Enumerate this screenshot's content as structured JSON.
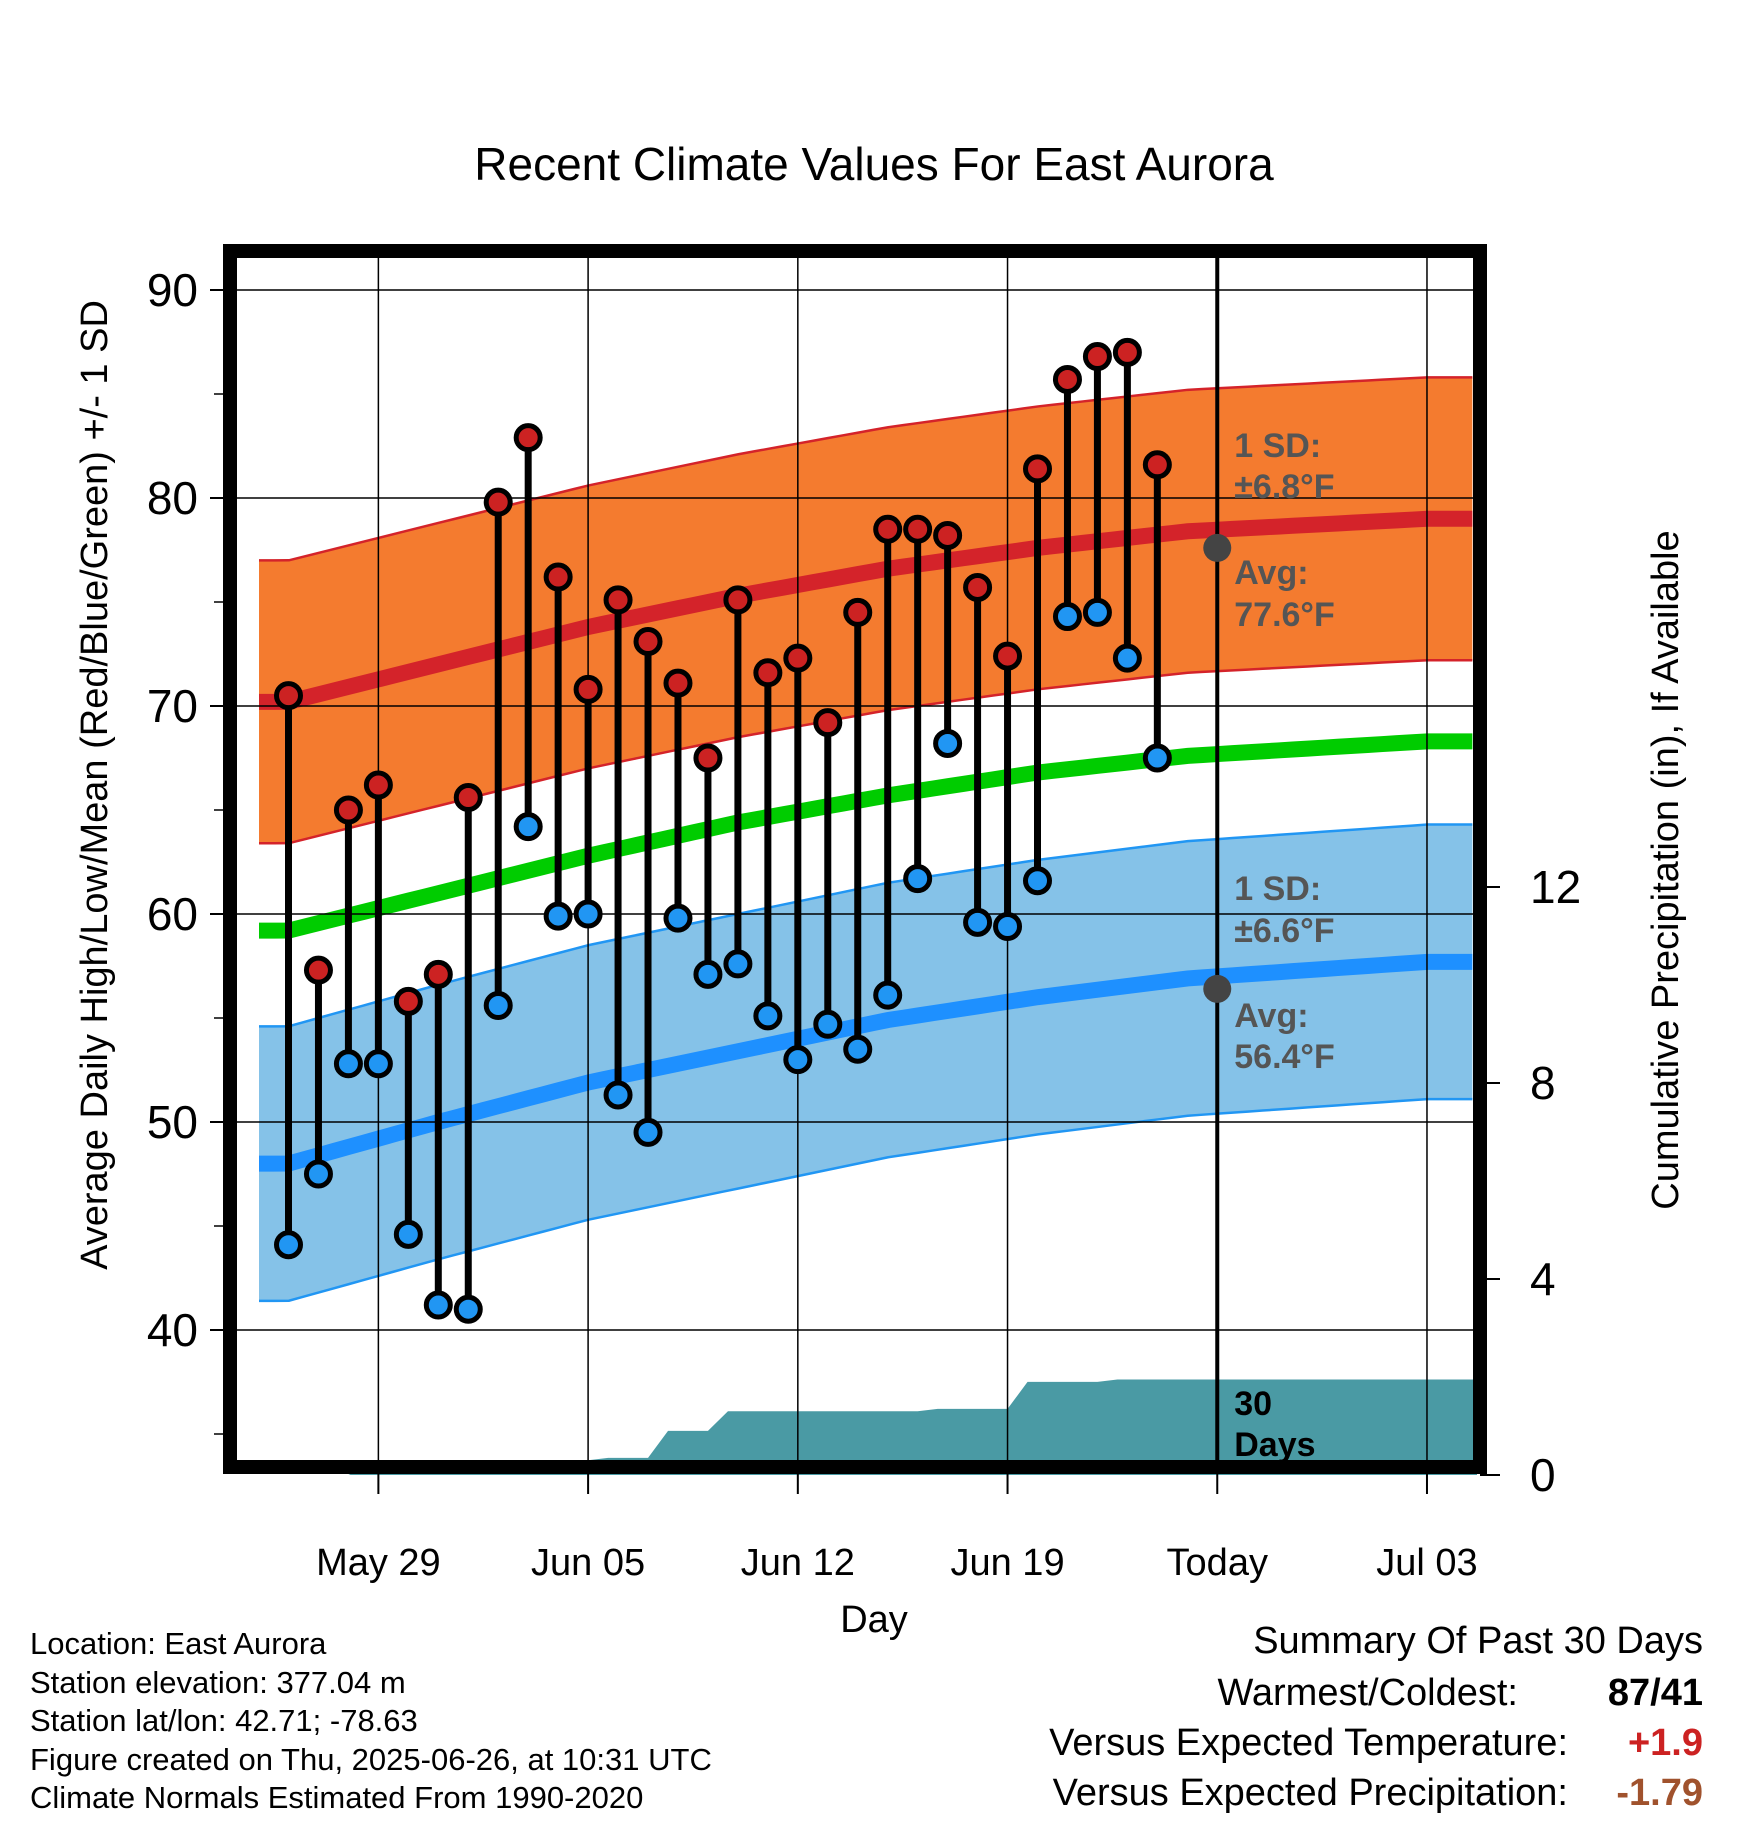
{
  "chart_data": {
    "type": "line",
    "title": "Recent Climate Values For East Aurora",
    "xlabel": "Day",
    "ylabel": "Average Daily High/Low/Mean (Red/Blue/Green) +/- 1 SD",
    "y2label": "Cumulative Precipitation (in), If Available",
    "ylim": [
      33,
      92
    ],
    "y2lim": [
      0,
      28.3
    ],
    "yticks": [
      "40",
      "50",
      "60",
      "70",
      "80",
      "90"
    ],
    "y2ticks": [
      "0",
      "4",
      "8",
      "12"
    ],
    "xticks": [
      "May 29",
      "Jun 05",
      "Jun 12",
      "Jun 19",
      "Today",
      "Jul 03"
    ],
    "today_marker": "Today",
    "days": [
      "May 26",
      "May 27",
      "May 28",
      "May 29",
      "May 30",
      "May 31",
      "Jun 01",
      "Jun 02",
      "Jun 03",
      "Jun 04",
      "Jun 05",
      "Jun 06",
      "Jun 07",
      "Jun 08",
      "Jun 09",
      "Jun 10",
      "Jun 11",
      "Jun 12",
      "Jun 13",
      "Jun 14",
      "Jun 15",
      "Jun 16",
      "Jun 17",
      "Jun 18",
      "Jun 19",
      "Jun 20",
      "Jun 21",
      "Jun 22",
      "Jun 23",
      "Jun 24",
      "Jun 25"
    ],
    "series": [
      {
        "name": "High",
        "color": "#cc2222",
        "values": [
          70.5,
          57.3,
          65.0,
          66.2,
          55.8,
          57.1,
          65.6,
          79.8,
          82.9,
          76.2,
          70.8,
          75.1,
          73.1,
          71.1,
          67.5,
          75.1,
          71.6,
          72.3,
          69.2,
          74.5,
          78.5,
          78.5,
          78.2,
          75.7,
          72.4,
          81.4,
          85.7,
          86.8,
          87.0,
          81.6,
          null
        ]
      },
      {
        "name": "Low",
        "color": "#2196f3",
        "values": [
          44.1,
          47.5,
          52.8,
          52.8,
          44.6,
          41.2,
          41.0,
          55.6,
          64.2,
          59.9,
          60.0,
          51.3,
          49.5,
          59.8,
          57.1,
          57.6,
          55.1,
          53.0,
          54.7,
          53.5,
          56.1,
          61.7,
          68.2,
          59.6,
          59.4,
          61.6,
          74.3,
          74.5,
          72.3,
          67.5,
          null
        ]
      }
    ],
    "normals": {
      "high_mean": [
        70.2,
        72.0,
        73.8,
        75.3,
        76.6,
        77.6,
        78.4,
        79.0
      ],
      "high_sd": 6.8,
      "low_mean": [
        48.0,
        50.0,
        51.9,
        53.4,
        54.9,
        56.0,
        56.9,
        57.7
      ],
      "low_sd": 6.6,
      "mean": [
        59.2,
        61.0,
        62.8,
        64.4,
        65.7,
        66.8,
        67.6,
        68.3
      ],
      "normal_days": [
        "May 26",
        "May 31",
        "Jun 05",
        "Jun 10",
        "Jun 15",
        "Jun 20",
        "Jun 25",
        "Jul 03"
      ]
    },
    "precip_cumulative": {
      "days": [
        "May 28",
        "May 30",
        "Jun 05",
        "Jun 07",
        "Jun 09",
        "Jun 16",
        "Jun 19",
        "Jun 22",
        "Jul 04"
      ],
      "values": [
        0.2,
        0.3,
        0.35,
        0.9,
        1.3,
        1.35,
        1.9,
        1.95,
        1.95
      ]
    },
    "annotations": {
      "high_sd_label": "1 SD:",
      "high_sd_value": "±6.8°F",
      "high_avg_label": "Avg:",
      "high_avg_value": "77.6°F",
      "low_sd_label": "1 SD:",
      "low_sd_value": "±6.6°F",
      "low_avg_label": "Avg:",
      "low_avg_value": "56.4°F",
      "precip_days_label": "30",
      "precip_days_label2": "Days"
    },
    "grid": true
  },
  "footer": {
    "location": "Location: East Aurora",
    "elevation": "Station elevation: 377.04 m",
    "latlon": "Station lat/lon: 42.71; -78.63",
    "created": "Figure created on Thu, 2025-06-26, at 10:31 UTC",
    "normals": "Climate Normals Estimated From 1990-2020"
  },
  "summary": {
    "title": "Summary Of Past 30 Days",
    "warmest_label": "Warmest/Coldest:",
    "warmest_value": "87/41",
    "temp_label": "Versus Expected Temperature:",
    "temp_value": "+1.9",
    "temp_color": "#cc2222",
    "precip_label": "Versus Expected Precipitation:",
    "precip_value": "-1.79",
    "precip_color": "#a0522d"
  }
}
